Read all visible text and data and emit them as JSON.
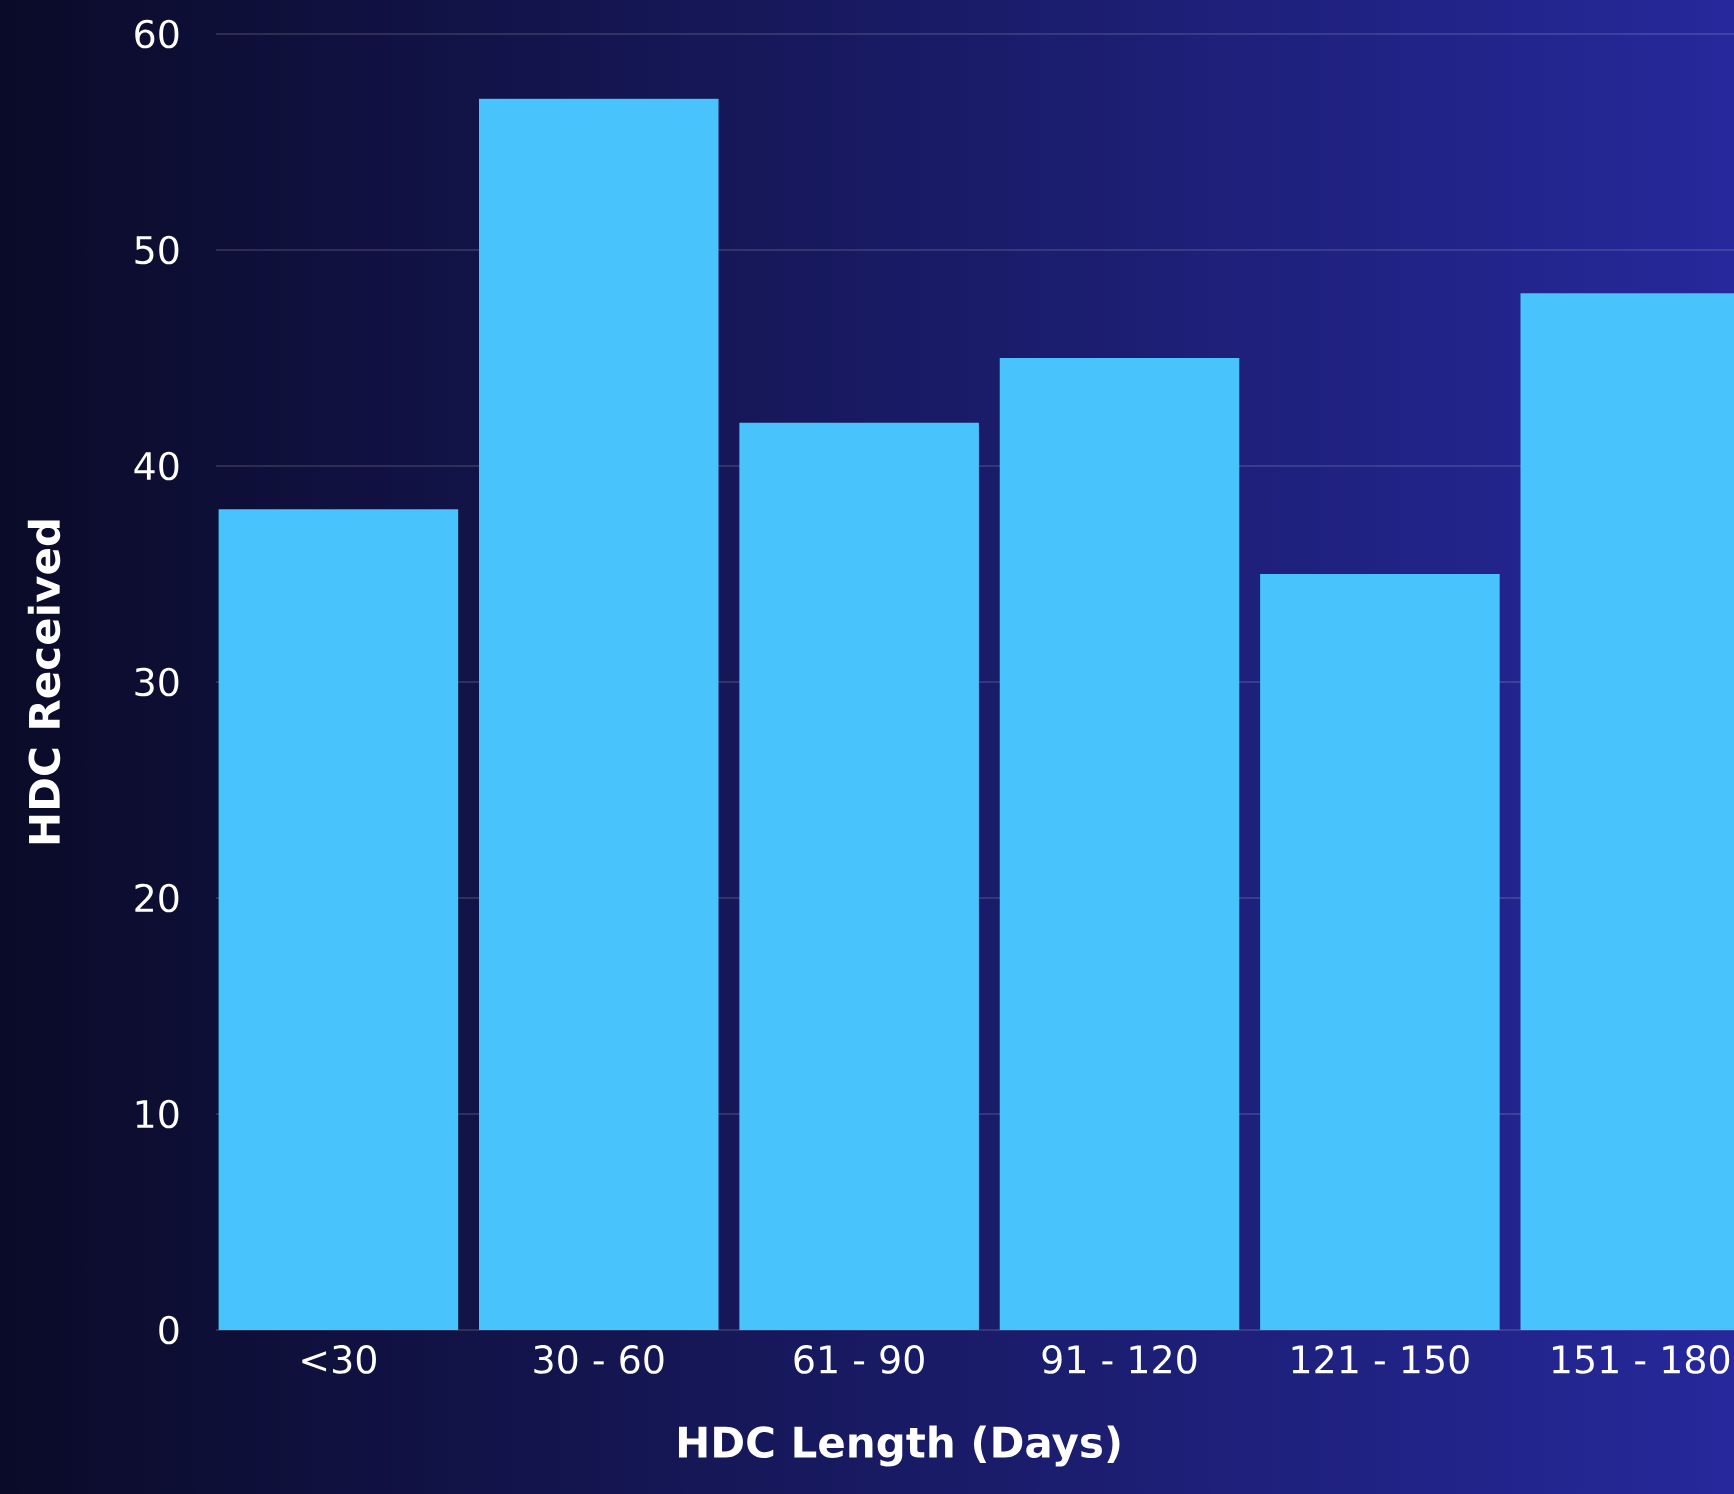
{
  "chart_data": {
    "type": "bar",
    "xlabel": "HDC Length (Days)",
    "ylabel": "HDC Received",
    "categories": [
      "<30",
      "30 - 60",
      "61 - 90",
      "91 - 120",
      "121 - 150",
      "151 - 180"
    ],
    "values": [
      38,
      57,
      42,
      45,
      35,
      48
    ],
    "color": "#48c3fc",
    "ylim": [
      0,
      60
    ],
    "yticks": [
      0,
      10,
      20,
      30,
      40,
      50,
      60
    ],
    "grid": "y"
  }
}
